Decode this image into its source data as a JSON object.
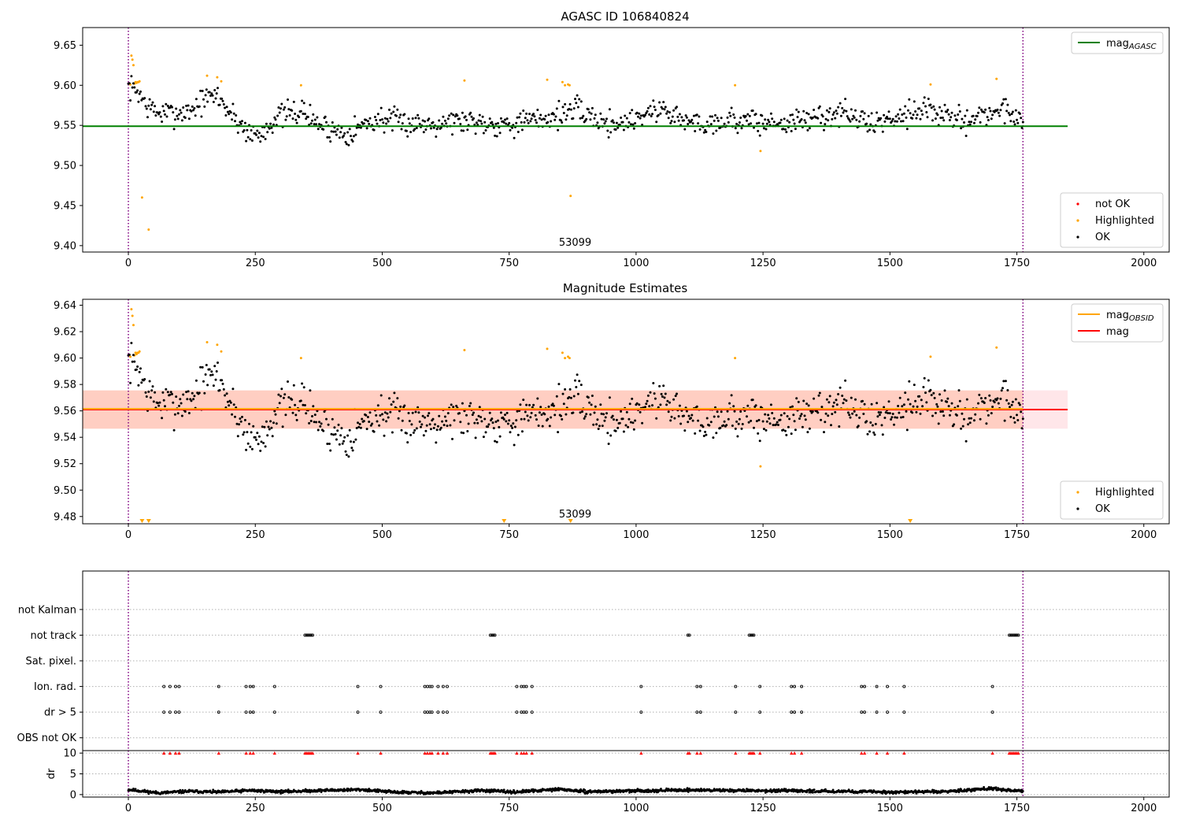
{
  "chart_data": [
    {
      "type": "scatter",
      "title": "AGASC ID 106840824",
      "xlim": [
        -90,
        2050
      ],
      "ylim": [
        9.392,
        9.672
      ],
      "xticks": [
        0,
        250,
        500,
        750,
        1000,
        1250,
        1500,
        1750,
        2000
      ],
      "yticks": [
        9.4,
        9.45,
        9.5,
        9.55,
        9.6,
        9.65
      ],
      "ytick_format": "2dp",
      "obsid_label": "53099",
      "obsid_label_x": 880,
      "vlines": [
        0,
        1762
      ],
      "reference_lines": [
        {
          "name": "mag_AGASC",
          "value": 9.549,
          "color": "#008000",
          "x": [
            -90,
            1850
          ]
        }
      ],
      "legend_top": [
        {
          "name": "mag",
          "sub": "AGASC",
          "kind": "line",
          "color": "#008000"
        }
      ],
      "legend_bottom": [
        {
          "name": "not OK",
          "kind": "dot",
          "color": "#ff0000"
        },
        {
          "name": "Highlighted",
          "kind": "dot",
          "color": "#ffa500"
        },
        {
          "name": "OK",
          "kind": "dot",
          "color": "#000000"
        }
      ],
      "series": [
        {
          "name": "Highlighted",
          "color": "#ffa500",
          "x": [
            4,
            6,
            8,
            10,
            12,
            14,
            16,
            18,
            20,
            22,
            27,
            40,
            155,
            175,
            183,
            340,
            662,
            825,
            855,
            860,
            866,
            869,
            871,
            1195,
            1245,
            1580,
            1710
          ],
          "y": [
            9.601,
            9.637,
            9.632,
            9.625,
            9.602,
            9.604,
            9.603,
            9.604,
            9.604,
            9.605,
            9.46,
            9.42,
            9.612,
            9.61,
            9.605,
            9.6,
            9.606,
            9.607,
            9.604,
            9.6,
            9.601,
            9.6,
            9.462,
            9.6,
            9.518,
            9.601,
            9.608
          ]
        },
        {
          "name": "OK",
          "color": "#000000",
          "trend": [
            [
              0,
              9.598
            ],
            [
              20,
              9.592
            ],
            [
              35,
              9.575
            ],
            [
              60,
              9.565
            ],
            [
              90,
              9.565
            ],
            [
              120,
              9.568
            ],
            [
              150,
              9.582
            ],
            [
              175,
              9.588
            ],
            [
              195,
              9.57
            ],
            [
              215,
              9.555
            ],
            [
              240,
              9.54
            ],
            [
              260,
              9.538
            ],
            [
              290,
              9.56
            ],
            [
              320,
              9.565
            ],
            [
              345,
              9.568
            ],
            [
              365,
              9.555
            ],
            [
              400,
              9.545
            ],
            [
              430,
              9.54
            ],
            [
              470,
              9.553
            ],
            [
              500,
              9.558
            ],
            [
              540,
              9.553
            ],
            [
              580,
              9.552
            ],
            [
              620,
              9.555
            ],
            [
              650,
              9.556
            ],
            [
              680,
              9.556
            ],
            [
              720,
              9.552
            ],
            [
              760,
              9.553
            ],
            [
              800,
              9.556
            ],
            [
              840,
              9.562
            ],
            [
              880,
              9.57
            ],
            [
              910,
              9.562
            ],
            [
              940,
              9.552
            ],
            [
              980,
              9.554
            ],
            [
              1020,
              9.566
            ],
            [
              1060,
              9.57
            ],
            [
              1090,
              9.556
            ],
            [
              1130,
              9.552
            ],
            [
              1170,
              9.556
            ],
            [
              1210,
              9.556
            ],
            [
              1250,
              9.553
            ],
            [
              1290,
              9.553
            ],
            [
              1330,
              9.556
            ],
            [
              1370,
              9.562
            ],
            [
              1410,
              9.566
            ],
            [
              1450,
              9.553
            ],
            [
              1490,
              9.556
            ],
            [
              1530,
              9.566
            ],
            [
              1570,
              9.572
            ],
            [
              1600,
              9.562
            ],
            [
              1640,
              9.556
            ],
            [
              1680,
              9.562
            ],
            [
              1720,
              9.57
            ],
            [
              1762,
              9.558
            ]
          ],
          "spread": 0.011,
          "step": 2.0,
          "seed": 7
        }
      ]
    },
    {
      "type": "scatter",
      "title": "Magnitude Estimates",
      "xlim": [
        -90,
        2050
      ],
      "ylim": [
        9.4745,
        9.6445
      ],
      "xticks": [
        0,
        250,
        500,
        750,
        1000,
        1250,
        1500,
        1750,
        2000
      ],
      "yticks": [
        9.48,
        9.5,
        9.52,
        9.54,
        9.56,
        9.58,
        9.6,
        9.62,
        9.64
      ],
      "ytick_format": "2dp",
      "obsid_label": "53099",
      "obsid_label_x": 880,
      "vlines": [
        0,
        1762
      ],
      "bands": [
        {
          "y": [
            9.5465,
            9.5755
          ],
          "x": [
            -90,
            1850
          ],
          "color": "#ffb6c1",
          "opacity": 0.35
        },
        {
          "y": [
            9.5465,
            9.5755
          ],
          "x": [
            -90,
            1762
          ],
          "color": "#ffa07a",
          "opacity": 0.35
        }
      ],
      "reference_lines": [
        {
          "name": "mag",
          "value": 9.561,
          "color": "#ff0000",
          "x": [
            -90,
            1850
          ]
        },
        {
          "name": "mag_OBSID",
          "value": 9.5615,
          "color": "#ffa500",
          "x": [
            -90,
            1762
          ]
        }
      ],
      "legend_top": [
        {
          "name": "mag",
          "sub": "OBSID",
          "kind": "line",
          "color": "#ffa500"
        },
        {
          "name": "mag",
          "sub": "",
          "kind": "line",
          "color": "#ff0000"
        }
      ],
      "legend_bottom": [
        {
          "name": "Highlighted",
          "kind": "dot",
          "color": "#ffa500"
        },
        {
          "name": "OK",
          "kind": "dot",
          "color": "#000000"
        }
      ],
      "offscale_markers": {
        "color": "#ffa500",
        "x": [
          27,
          40,
          740,
          871,
          1540
        ]
      },
      "series": [
        {
          "name": "Highlighted",
          "color": "#ffa500",
          "x": [
            4,
            6,
            8,
            10,
            12,
            14,
            16,
            18,
            20,
            22,
            155,
            175,
            183,
            340,
            662,
            825,
            855,
            860,
            866,
            869,
            1195,
            1245,
            1580,
            1710
          ],
          "y": [
            9.601,
            9.637,
            9.632,
            9.625,
            9.602,
            9.604,
            9.603,
            9.604,
            9.604,
            9.605,
            9.612,
            9.61,
            9.605,
            9.6,
            9.606,
            9.607,
            9.604,
            9.6,
            9.601,
            9.6,
            9.6,
            9.518,
            9.601,
            9.608
          ]
        },
        {
          "name": "OK",
          "color": "#000000",
          "same_as_panel": 0
        }
      ]
    },
    {
      "type": "scatter",
      "title": "",
      "xlim": [
        -90,
        2050
      ],
      "ylim": [
        -0.5,
        6.5
      ],
      "vlines": [
        0,
        1762
      ],
      "row_labels": [
        "OBS not OK",
        "dr > 5",
        "Ion. rad.",
        "Sat. pixel.",
        "not track",
        "not Kalman"
      ],
      "flags": [
        {
          "row": "dr > 5",
          "x": [
            70,
            82,
            93,
            100,
            178,
            232,
            240,
            246,
            288,
            452,
            497,
            584,
            589,
            594,
            598,
            610,
            620,
            628,
            765,
            774,
            779,
            784,
            795,
            1010,
            1120,
            1127,
            1196,
            1244,
            1306,
            1312,
            1326,
            1444,
            1450,
            1474,
            1495,
            1528,
            1702
          ]
        },
        {
          "row": "Ion. rad.",
          "x": [
            70,
            82,
            93,
            100,
            178,
            232,
            240,
            246,
            288,
            452,
            497,
            584,
            589,
            594,
            598,
            610,
            620,
            628,
            765,
            774,
            779,
            784,
            795,
            1010,
            1120,
            1127,
            1196,
            1244,
            1306,
            1312,
            1326,
            1444,
            1450,
            1474,
            1495,
            1528,
            1702
          ]
        },
        {
          "row": "not track",
          "x": [
            348,
            351,
            354,
            357,
            360,
            363,
            713,
            716,
            719,
            722,
            1102,
            1105,
            1223,
            1226,
            1229,
            1232,
            1735,
            1738,
            1741,
            1744,
            1747,
            1750,
            1753
          ]
        }
      ]
    },
    {
      "type": "scatter",
      "title": "",
      "ylabel": "dr",
      "xlim": [
        -90,
        2050
      ],
      "ylim": [
        -0.6,
        10.6
      ],
      "xticks": [
        0,
        250,
        500,
        750,
        1000,
        1250,
        1500,
        1750,
        2000
      ],
      "yticks": [
        0,
        5,
        10
      ],
      "ytick_format": "int",
      "vlines": [
        0,
        1762
      ],
      "hlines": [
        0,
        5,
        10
      ],
      "clipped_markers": {
        "value": 10,
        "color": "#ff0000",
        "x": [
          70,
          82,
          93,
          100,
          178,
          232,
          240,
          246,
          288,
          348,
          351,
          354,
          357,
          360,
          363,
          452,
          497,
          584,
          589,
          594,
          598,
          610,
          620,
          628,
          713,
          716,
          719,
          722,
          765,
          774,
          779,
          784,
          795,
          1010,
          1102,
          1105,
          1120,
          1127,
          1196,
          1223,
          1226,
          1229,
          1232,
          1244,
          1306,
          1312,
          1326,
          1444,
          1450,
          1474,
          1495,
          1528,
          1702,
          1735,
          1738,
          1741,
          1744,
          1747,
          1750,
          1753
        ]
      },
      "series": [
        {
          "name": "dr",
          "color": "#000000",
          "trend": [
            [
              0,
              1.2
            ],
            [
              60,
              0.4
            ],
            [
              120,
              0.8
            ],
            [
              180,
              0.6
            ],
            [
              240,
              1.0
            ],
            [
              300,
              0.7
            ],
            [
              380,
              1.0
            ],
            [
              460,
              1.2
            ],
            [
              520,
              0.6
            ],
            [
              600,
              0.4
            ],
            [
              700,
              1.0
            ],
            [
              760,
              0.6
            ],
            [
              850,
              1.3
            ],
            [
              900,
              0.7
            ],
            [
              1000,
              0.9
            ],
            [
              1100,
              1.1
            ],
            [
              1200,
              1.0
            ],
            [
              1300,
              0.9
            ],
            [
              1400,
              0.8
            ],
            [
              1500,
              0.6
            ],
            [
              1600,
              0.7
            ],
            [
              1700,
              1.5
            ],
            [
              1762,
              0.7
            ]
          ],
          "spread": 0.25,
          "step": 1.0,
          "seed": 11
        }
      ]
    }
  ]
}
